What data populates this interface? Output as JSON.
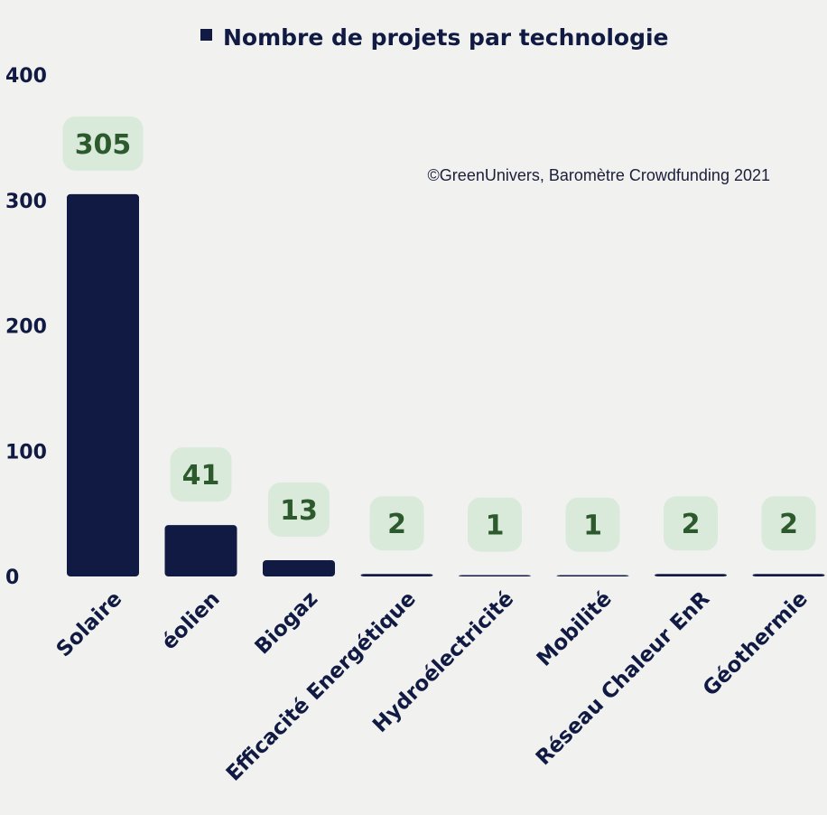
{
  "chart_data": {
    "type": "bar",
    "categories": [
      "Solaire",
      "éolien",
      "Biogaz",
      "Efficacité Energétique",
      "Hydroélectricité",
      "Mobilité",
      "Réseau Chaleur EnR",
      "Géothermie"
    ],
    "series": [
      {
        "name": "Nombre de projets par technologie",
        "values": [
          305,
          41,
          13,
          2,
          1,
          1,
          2,
          2
        ]
      }
    ],
    "data_labels": [
      "305",
      "41",
      "13",
      "2",
      "1",
      "1",
      "2",
      "2"
    ],
    "ylim": [
      0,
      400
    ],
    "yticks": [
      "0",
      "100",
      "200",
      "300",
      "400"
    ],
    "legend_position": "top-center",
    "annotation": "©GreenUnivers, Baromètre Crowdfunding 2021",
    "grid": false
  },
  "colors": {
    "bar": "#101a42",
    "label_bg": "#d9eadb",
    "label_text": "#2d5a2d",
    "background": "#f1f1ef"
  }
}
